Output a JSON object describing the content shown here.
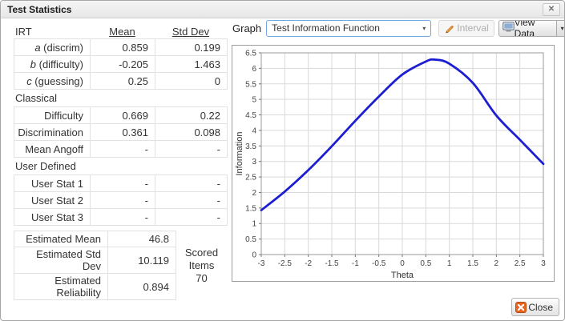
{
  "dialog": {
    "title": "Test Statistics"
  },
  "icons": {
    "titlebar_close": "✕",
    "select_caret": "▾",
    "view_data_caret": "▾"
  },
  "left": {
    "header": {
      "col0": "IRT",
      "col1": "Mean",
      "col2": "Std Dev"
    },
    "irt_rows": [
      {
        "em": "a",
        "label": " (discrim)",
        "mean": "0.859",
        "stddev": "0.199"
      },
      {
        "em": "b",
        "label": " (difficulty)",
        "mean": "-0.205",
        "stddev": "1.463"
      },
      {
        "em": "c",
        "label": " (guessing)",
        "mean": "0.25",
        "stddev": "0"
      }
    ],
    "classical_title": "Classical",
    "classical_rows": [
      {
        "label": "Difficulty",
        "mean": "0.669",
        "stddev": "0.22"
      },
      {
        "label": "Discrimination",
        "mean": "0.361",
        "stddev": "0.098"
      },
      {
        "label": "Mean Angoff",
        "mean": "-",
        "stddev": "-"
      }
    ],
    "user_title": "User Defined",
    "user_rows": [
      {
        "label": "User Stat 1",
        "mean": "-",
        "stddev": "-"
      },
      {
        "label": "User Stat 2",
        "mean": "-",
        "stddev": "-"
      },
      {
        "label": "User Stat 3",
        "mean": "-",
        "stddev": "-"
      }
    ],
    "estimated_rows": [
      {
        "label": "Estimated Mean",
        "value": "46.8"
      },
      {
        "label": "Estimated Std Dev",
        "value": "10.119"
      },
      {
        "label": "Estimated Reliability",
        "value": "0.894"
      }
    ],
    "scored": {
      "label": "Scored Items",
      "value": "70"
    }
  },
  "controls": {
    "graph_label": "Graph",
    "graph_select_value": "Test Information Function",
    "interval_button": "Interval",
    "view_data_button": "View Data"
  },
  "footer": {
    "close_button": "Close"
  },
  "chart_data": {
    "type": "line",
    "title": "",
    "xlabel": "Theta",
    "ylabel": "Information",
    "xlim": [
      -3,
      3
    ],
    "ylim": [
      0,
      6.5
    ],
    "x_ticks": [
      -3,
      -2.5,
      -2,
      -1.5,
      -1,
      -0.5,
      0,
      0.5,
      1,
      1.5,
      2,
      2.5,
      3
    ],
    "y_ticks": [
      0,
      0.5,
      1,
      1.5,
      2,
      2.5,
      3,
      3.5,
      4,
      4.5,
      5,
      5.5,
      6,
      6.5
    ],
    "grid": true,
    "legend": "none",
    "series": [
      {
        "name": "Test Information Function",
        "color": "#1d1dd1",
        "points": [
          [
            -3,
            1.43
          ],
          [
            -2.5,
            2.03
          ],
          [
            -2,
            2.72
          ],
          [
            -1.5,
            3.49
          ],
          [
            -1,
            4.31
          ],
          [
            -0.5,
            5.09
          ],
          [
            0,
            5.8
          ],
          [
            0.5,
            6.22
          ],
          [
            0.7,
            6.28
          ],
          [
            1,
            6.15
          ],
          [
            1.5,
            5.53
          ],
          [
            2,
            4.48
          ],
          [
            2.5,
            3.7
          ],
          [
            3,
            2.92
          ]
        ]
      }
    ]
  }
}
